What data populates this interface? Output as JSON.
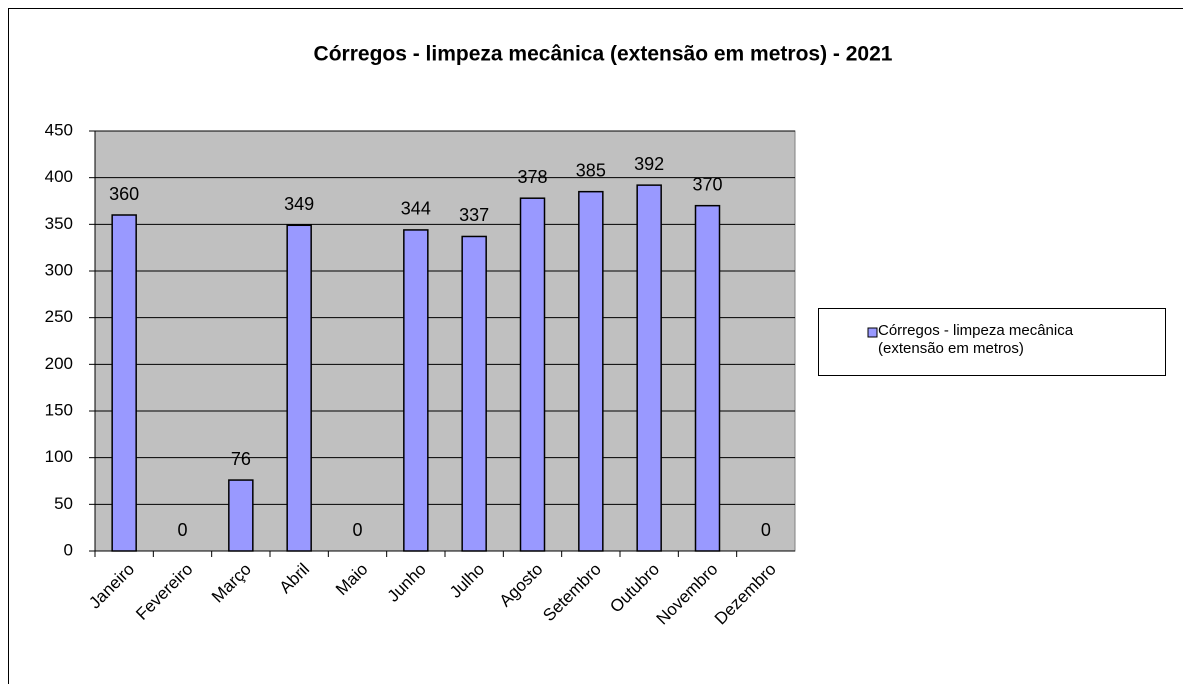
{
  "chart_data": {
    "type": "bar",
    "title": "Córregos - limpeza mecânica (extensão em metros) - 2021",
    "categories": [
      "Janeiro",
      "Fevereiro",
      "Março",
      "Abril",
      "Maio",
      "Junho",
      "Julho",
      "Agosto",
      "Setembro",
      "Outubro",
      "Novembro",
      "Dezembro"
    ],
    "series": [
      {
        "name": "Córregos - limpeza mecânica (extensão em metros)",
        "color": "#9999ff",
        "values": [
          360,
          0,
          76,
          349,
          0,
          344,
          337,
          378,
          385,
          392,
          370,
          0
        ]
      }
    ],
    "ylim": [
      0,
      450
    ],
    "yticks": [
      0,
      50,
      100,
      150,
      200,
      250,
      300,
      350,
      400,
      450
    ],
    "grid": true,
    "legend": "right"
  }
}
